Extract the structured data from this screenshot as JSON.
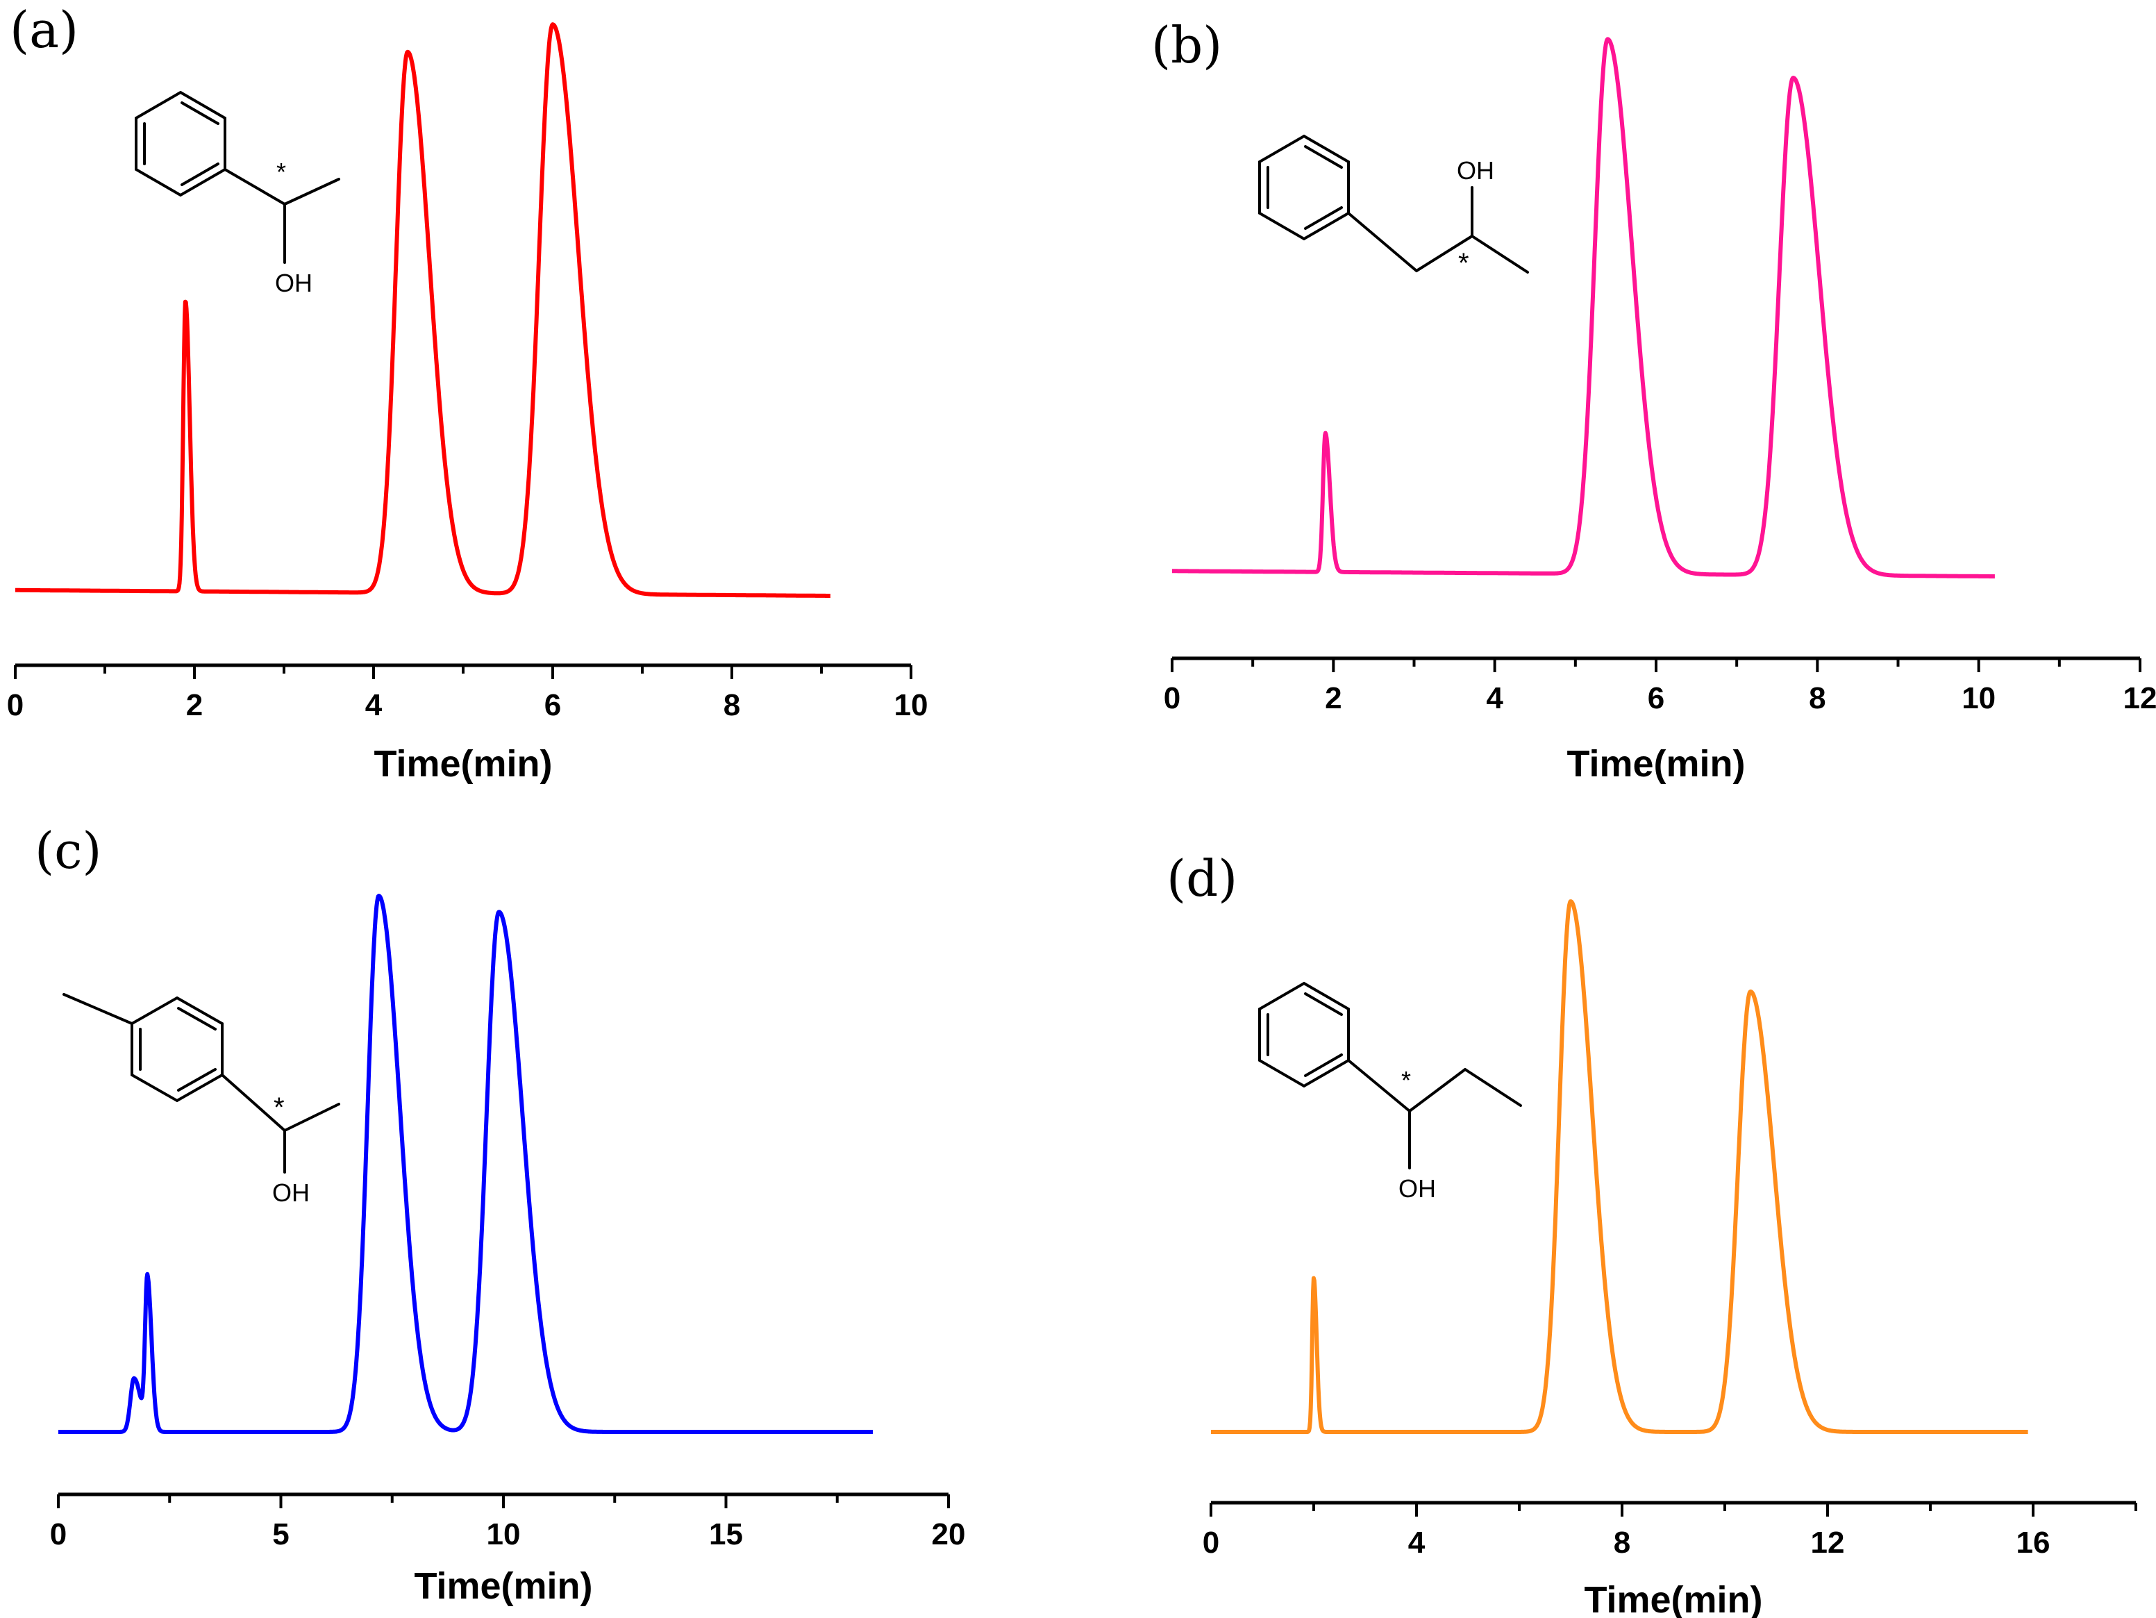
{
  "chart_data": [
    {
      "type": "line",
      "panel_label": "(a)",
      "xlabel": "Time(min)",
      "ylabel": "",
      "xlim": [
        0,
        10
      ],
      "xticks": [
        "0",
        "2",
        "4",
        "6",
        "8",
        "10"
      ],
      "xtick_values": [
        0,
        2,
        4,
        6,
        8,
        10
      ],
      "series": [
        {
          "name": "chromatogram-a",
          "color": "#ff0000",
          "x_end": 9.1,
          "baseline": 0.02,
          "peaks": [
            {
              "rt": 1.9,
              "height": 0.51,
              "width": 0.025
            },
            {
              "rt": 4.38,
              "height": 0.95,
              "width": 0.13
            },
            {
              "rt": 6.0,
              "height": 1.0,
              "width": 0.15
            }
          ]
        }
      ],
      "structure": {
        "labels": [
          "*",
          "OH"
        ]
      }
    },
    {
      "type": "line",
      "panel_label": "(b)",
      "xlabel": "Time(min)",
      "ylabel": "",
      "xlim": [
        0,
        12
      ],
      "xticks": [
        "0",
        "2",
        "4",
        "6",
        "8",
        "10",
        "12"
      ],
      "xtick_values": [
        0,
        2,
        4,
        6,
        8,
        10,
        12
      ],
      "series": [
        {
          "name": "chromatogram-b",
          "color": "#ff1493",
          "x_end": 10.2,
          "baseline": 0.02,
          "peaks": [
            {
              "rt": 1.9,
              "height": 0.26,
              "width": 0.03
            },
            {
              "rt": 5.4,
              "height": 1.0,
              "width": 0.16
            },
            {
              "rt": 7.7,
              "height": 0.93,
              "width": 0.17
            }
          ]
        }
      ],
      "structure": {
        "labels": [
          "OH",
          "*"
        ]
      }
    },
    {
      "type": "line",
      "panel_label": "(c)",
      "xlabel": "Time(min)",
      "ylabel": "",
      "xlim": [
        0,
        20
      ],
      "xticks": [
        "0",
        "5",
        "10",
        "15",
        "20"
      ],
      "xtick_values": [
        0,
        5,
        10,
        15,
        20
      ],
      "series": [
        {
          "name": "chromatogram-c",
          "color": "#0000ff",
          "x_end": 18.3,
          "baseline": 0.0,
          "peaks": [
            {
              "rt": 1.7,
              "height": 0.1,
              "width": 0.08
            },
            {
              "rt": 2.0,
              "height": 0.28,
              "width": 0.05
            },
            {
              "rt": 7.2,
              "height": 1.0,
              "width": 0.25
            },
            {
              "rt": 9.9,
              "height": 0.97,
              "width": 0.28
            }
          ]
        }
      ],
      "structure": {
        "labels": [
          "*",
          "OH"
        ]
      }
    },
    {
      "type": "line",
      "panel_label": "(d)",
      "xlabel": "Time(min)",
      "ylabel": "",
      "xlim": [
        0,
        18
      ],
      "xticks": [
        "0",
        "4",
        "8",
        "12",
        "16"
      ],
      "xtick_values": [
        0,
        4,
        8,
        12,
        16
      ],
      "series": [
        {
          "name": "chromatogram-d",
          "color": "#ff8c1a",
          "x_end": 15.9,
          "baseline": 0.0,
          "peaks": [
            {
              "rt": 2.0,
              "height": 0.29,
              "width": 0.03
            },
            {
              "rt": 7.0,
              "height": 1.0,
              "width": 0.22
            },
            {
              "rt": 10.5,
              "height": 0.83,
              "width": 0.24
            }
          ]
        }
      ],
      "structure": {
        "labels": [
          "*",
          "OH"
        ]
      }
    }
  ]
}
